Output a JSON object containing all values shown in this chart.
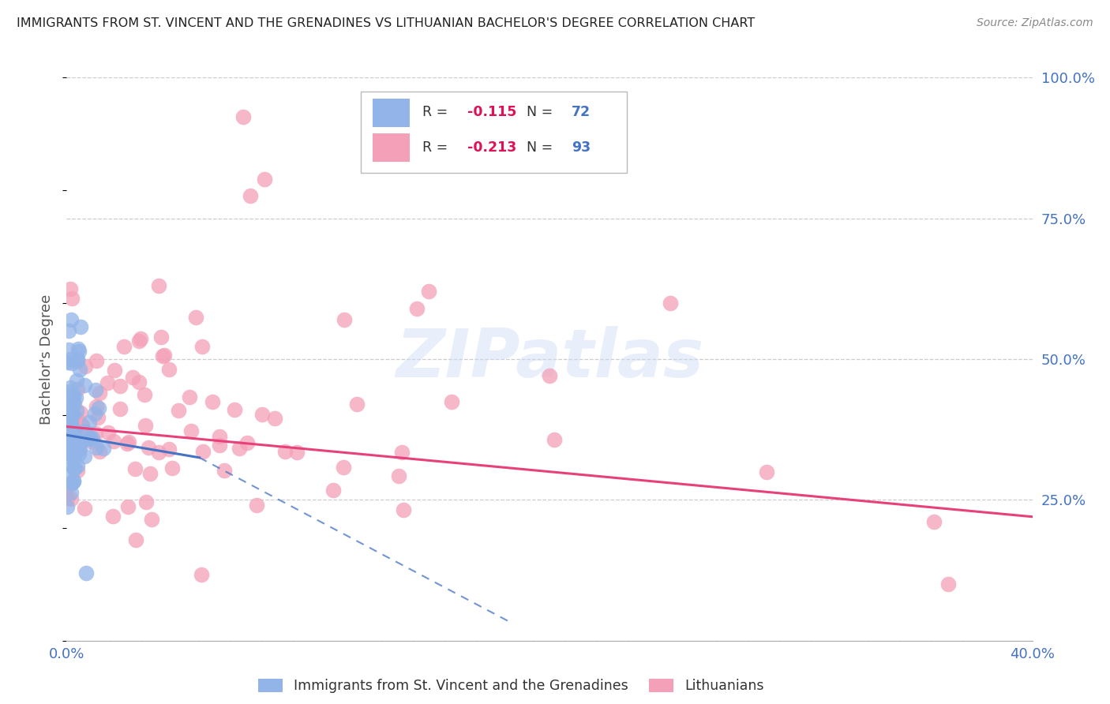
{
  "title": "IMMIGRANTS FROM ST. VINCENT AND THE GRENADINES VS LITHUANIAN BACHELOR'S DEGREE CORRELATION CHART",
  "source": "Source: ZipAtlas.com",
  "ylabel": "Bachelor's Degree",
  "xlim": [
    0.0,
    0.4
  ],
  "ylim": [
    0.0,
    1.0
  ],
  "xticks": [
    0.0,
    0.05,
    0.1,
    0.15,
    0.2,
    0.25,
    0.3,
    0.35,
    0.4
  ],
  "xticklabels": [
    "0.0%",
    "",
    "",
    "",
    "",
    "",
    "",
    "",
    "40.0%"
  ],
  "yticks_right": [
    0.0,
    0.25,
    0.5,
    0.75,
    1.0
  ],
  "yticklabels_right": [
    "",
    "25.0%",
    "50.0%",
    "75.0%",
    "100.0%"
  ],
  "series1_label": "Immigrants from St. Vincent and the Grenadines",
  "series1_R": "-0.115",
  "series1_N": "72",
  "series1_color": "#92b4e8",
  "series2_label": "Lithuanians",
  "series2_R": "-0.213",
  "series2_N": "93",
  "series2_color": "#f4a0b8",
  "trend1_color": "#4472c4",
  "trend2_color": "#e8407a",
  "watermark": "ZIPatlas",
  "background_color": "#ffffff",
  "grid_color": "#cccccc",
  "title_color": "#222222",
  "axis_label_color": "#555555",
  "tick_label_color": "#4472c4",
  "legend_R_color": "#dd1155",
  "legend_N_color": "#4472c4"
}
